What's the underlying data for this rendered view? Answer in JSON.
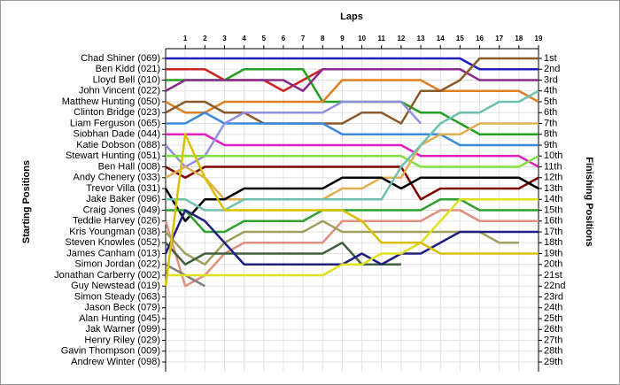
{
  "chart_data": {
    "type": "lap",
    "title": "Laps",
    "y_title": "Starting Positions",
    "y2_title": "Finishing Positions",
    "xlim": [
      0,
      19
    ],
    "xticks": [
      1,
      2,
      3,
      4,
      5,
      6,
      7,
      8,
      9,
      10,
      11,
      12,
      13,
      14,
      15,
      16,
      17,
      18,
      19
    ],
    "ylim": [
      1,
      29
    ],
    "y_reversed": true,
    "grid": true,
    "yticks": [
      {
        "value": 1,
        "label": "1st"
      },
      {
        "value": 2,
        "label": "2nd"
      },
      {
        "value": 3,
        "label": "3rd"
      },
      {
        "value": 4,
        "label": "4th"
      },
      {
        "value": 5,
        "label": "5th"
      },
      {
        "value": 6,
        "label": "6th"
      },
      {
        "value": 7,
        "label": "7th"
      },
      {
        "value": 8,
        "label": "8th"
      },
      {
        "value": 9,
        "label": "9th"
      },
      {
        "value": 10,
        "label": "10th"
      },
      {
        "value": 11,
        "label": "11th"
      },
      {
        "value": 12,
        "label": "12th"
      },
      {
        "value": 13,
        "label": "13th"
      },
      {
        "value": 14,
        "label": "14th"
      },
      {
        "value": 15,
        "label": "15th"
      },
      {
        "value": 16,
        "label": "16th"
      },
      {
        "value": 17,
        "label": "17th"
      },
      {
        "value": 18,
        "label": "18th"
      },
      {
        "value": 19,
        "label": "19th"
      },
      {
        "value": 20,
        "label": "20th"
      },
      {
        "value": 21,
        "label": "21st"
      },
      {
        "value": 22,
        "label": "22nd"
      },
      {
        "value": 23,
        "label": "23rd"
      },
      {
        "value": 24,
        "label": "24th"
      },
      {
        "value": 25,
        "label": "25th"
      },
      {
        "value": 26,
        "label": "26th"
      },
      {
        "value": 27,
        "label": "27th"
      },
      {
        "value": 28,
        "label": "28th"
      },
      {
        "value": 29,
        "label": "29th"
      }
    ],
    "series": [
      {
        "name": "Chad Shiner (069)",
        "color": "#1f1fbf",
        "values": [
          1,
          1,
          1,
          1,
          1,
          1,
          1,
          1,
          1,
          1,
          1,
          1,
          1,
          1,
          1,
          1,
          2,
          2,
          2,
          2
        ]
      },
      {
        "name": "Ben Kidd (021)",
        "color": "#cc2222",
        "values": [
          2,
          2,
          2,
          3,
          3,
          3,
          4,
          3,
          2
        ]
      },
      {
        "name": "Lloyd Bell (010)",
        "color": "#22a022",
        "values": [
          3,
          3,
          3,
          3,
          2,
          2,
          2,
          2,
          5,
          5,
          5,
          5,
          5,
          6,
          6,
          7,
          8,
          8,
          8,
          8
        ]
      },
      {
        "name": "John Vincent (022)",
        "color": "#8a2a8a",
        "values": [
          4,
          3,
          3,
          3,
          3,
          3,
          3,
          4,
          2,
          2,
          2,
          2,
          2,
          2,
          2,
          2,
          3,
          3,
          3,
          3
        ]
      },
      {
        "name": "Matthew Hunting (050)",
        "color": "#e08020",
        "values": [
          5,
          6,
          6,
          5,
          5,
          5,
          5,
          5,
          5,
          3,
          3,
          3,
          3,
          3,
          4,
          4,
          4,
          4,
          4,
          5
        ]
      },
      {
        "name": "Clinton Bridge (023)",
        "color": "#8b5a2b",
        "values": [
          6,
          5,
          5,
          6,
          6,
          7,
          7,
          7,
          7,
          7,
          6,
          6,
          7,
          4,
          4,
          3,
          1,
          1,
          1,
          1
        ]
      },
      {
        "name": "Liam Ferguson (065)",
        "color": "#3a8ad8",
        "values": [
          7,
          7,
          6,
          7,
          7,
          7,
          7,
          7,
          7,
          8,
          8,
          8,
          8,
          8,
          8,
          9,
          9,
          9,
          9,
          9
        ]
      },
      {
        "name": "Siobhan Dade (044)",
        "color": "#e020c0",
        "values": [
          8,
          8,
          8,
          9,
          9,
          9,
          9,
          9,
          9,
          9,
          9,
          9,
          9,
          10,
          10,
          10,
          10,
          10,
          10,
          11
        ]
      },
      {
        "name": "Katie Dobson (088)",
        "color": "#9090e0",
        "values": [
          9,
          11,
          10,
          7,
          6,
          6,
          6,
          6,
          6,
          5,
          5,
          5,
          5,
          7
        ]
      },
      {
        "name": "Stewart Hunting (051)",
        "color": "#80e040",
        "values": [
          10,
          10,
          10,
          10,
          10,
          10,
          10,
          10,
          10,
          10,
          10,
          10,
          10,
          11,
          11,
          11,
          11,
          11,
          11,
          10
        ]
      },
      {
        "name": "Ben Hall (008)",
        "color": "#800000",
        "values": [
          11,
          12,
          11,
          11,
          11,
          11,
          11,
          11,
          11,
          11,
          11,
          11,
          11,
          14,
          13,
          13,
          13,
          13,
          13,
          12
        ]
      },
      {
        "name": "Andy Chenery (033)",
        "color": "#e0b050",
        "values": [
          12,
          11,
          12,
          14,
          14,
          14,
          14,
          14,
          14,
          13,
          13,
          12,
          12,
          9,
          8,
          8,
          7,
          7,
          7,
          7
        ]
      },
      {
        "name": "Trevor Villa (031)",
        "color": "#000000",
        "values": [
          13,
          16,
          14,
          14,
          13,
          13,
          13,
          13,
          13,
          12,
          12,
          12,
          13,
          12,
          12,
          12,
          12,
          12,
          12,
          13
        ]
      },
      {
        "name": "Jake Baker (096)",
        "color": "#70c0b0",
        "values": [
          14,
          14,
          15,
          15,
          14,
          14,
          14,
          14,
          14,
          14,
          14,
          14,
          11,
          9,
          7,
          6,
          6,
          5,
          5,
          4
        ]
      },
      {
        "name": "Craig Jones (049)",
        "color": "#30a030",
        "values": [
          15,
          15,
          17,
          17,
          16,
          16,
          16,
          16,
          15,
          15,
          15,
          15,
          15,
          15,
          14,
          14,
          15,
          15,
          15,
          15
        ]
      },
      {
        "name": "Teddie Harvey (026)",
        "color": "#e09080",
        "values": [
          16,
          22,
          21,
          19,
          18,
          18,
          18,
          18,
          18,
          16,
          16,
          16,
          16,
          16,
          15,
          15,
          16,
          16,
          16,
          16
        ]
      },
      {
        "name": "Kris Youngman (038)",
        "color": "#a0a060",
        "values": [
          17,
          19,
          20,
          18,
          17,
          17,
          17,
          17,
          16,
          17,
          17,
          17,
          17,
          17,
          17,
          17,
          17,
          18,
          18
        ]
      },
      {
        "name": "Steven Knowles (052)",
        "color": "#406040",
        "values": [
          18,
          20,
          19,
          19,
          19,
          19,
          19,
          19,
          19,
          18,
          20,
          20,
          20
        ]
      },
      {
        "name": "James Canham (013)",
        "color": "#202080",
        "values": [
          19,
          15,
          16,
          18,
          20,
          20,
          20,
          20,
          20,
          20,
          19,
          20,
          19,
          19,
          18,
          17,
          17,
          17,
          17,
          17
        ]
      },
      {
        "name": "Simon Jordan (022)",
        "color": "#808080",
        "values": [
          20,
          21,
          22
        ]
      },
      {
        "name": "Jonathan Carberry (002)",
        "color": "#e0e020",
        "values": [
          21,
          21,
          21,
          21,
          21,
          21,
          21,
          21,
          21,
          20,
          20,
          19,
          19,
          18,
          16,
          14,
          14,
          14,
          14,
          14
        ]
      },
      {
        "name": "Guy Newstead (019)",
        "color": "#d8c000",
        "values": [
          22,
          8,
          12,
          15,
          15,
          15,
          15,
          15,
          15,
          15,
          16,
          18,
          18,
          18,
          19,
          19,
          19,
          19,
          19,
          19
        ]
      },
      {
        "name": "Simon Steady (063)",
        "color": "#999999",
        "values": [
          23
        ]
      },
      {
        "name": "Jason Beck (079)",
        "color": "#999999",
        "values": [
          24
        ]
      },
      {
        "name": "Alan Hunting (045)",
        "color": "#999999",
        "values": [
          25
        ]
      },
      {
        "name": "Jak Warner (099)",
        "color": "#999999",
        "values": [
          26
        ]
      },
      {
        "name": "Henry Riley (029)",
        "color": "#999999",
        "values": [
          27
        ]
      },
      {
        "name": "Gavin Thompson (009)",
        "color": "#999999",
        "values": [
          28
        ]
      },
      {
        "name": "Andrew Winter (098)",
        "color": "#999999",
        "values": [
          29
        ]
      }
    ]
  }
}
